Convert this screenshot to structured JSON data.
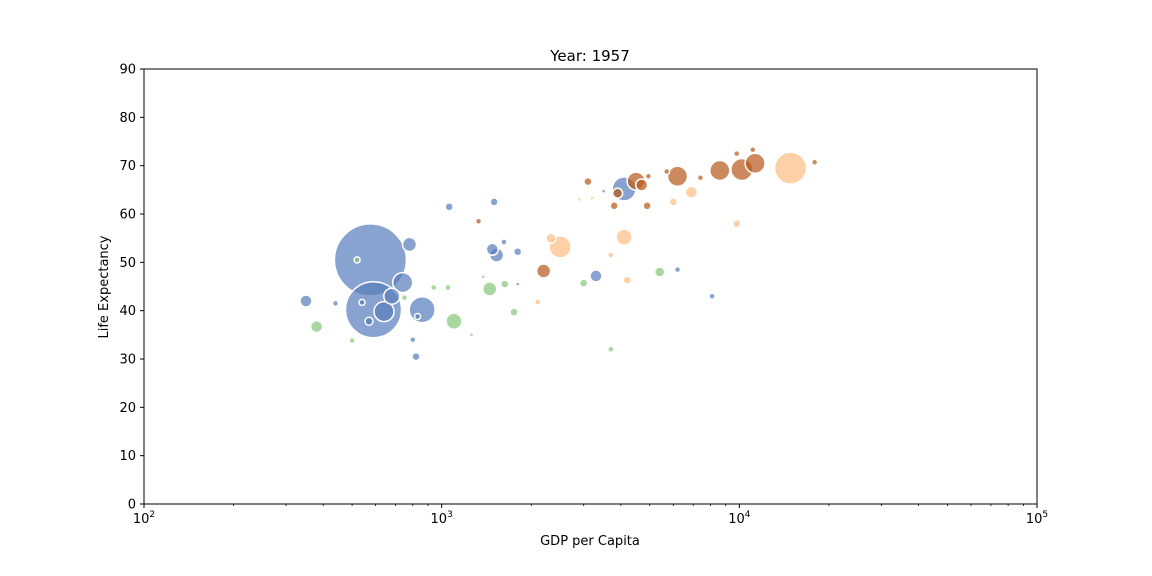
{
  "chart_data": {
    "type": "scatter",
    "title": "Year: 1957",
    "xlabel": "GDP per Capita",
    "ylabel": "Life Expectancy",
    "xscale": "log",
    "xlim": [
      100,
      100000
    ],
    "ylim": [
      0,
      90
    ],
    "x_ticks": [
      100,
      1000,
      10000,
      100000
    ],
    "x_tick_labels": [
      {
        "base": "10",
        "exp": "2"
      },
      {
        "base": "10",
        "exp": "3"
      },
      {
        "base": "10",
        "exp": "4"
      },
      {
        "base": "10",
        "exp": "5"
      }
    ],
    "y_ticks": [
      0,
      10,
      20,
      30,
      40,
      50,
      60,
      70,
      80,
      90
    ],
    "y_tick_labels": [
      "0",
      "10",
      "20",
      "30",
      "40",
      "50",
      "60",
      "70",
      "80",
      "90"
    ],
    "grid": false,
    "legend": "none",
    "colors": {
      "blue": "#5a7fbd",
      "green": "#86c77a",
      "orange": "#fdbe85",
      "brown": "#b85c1e"
    },
    "points": [
      {
        "x": 576,
        "y": 50.5,
        "size": 36,
        "color": "blue"
      },
      {
        "x": 590,
        "y": 40.2,
        "size": 28,
        "color": "blue"
      },
      {
        "x": 14850,
        "y": 69.5,
        "size": 16,
        "color": "orange"
      },
      {
        "x": 4100,
        "y": 65.2,
        "size": 12,
        "color": "blue"
      },
      {
        "x": 10200,
        "y": 69.2,
        "size": 11,
        "color": "brown"
      },
      {
        "x": 860,
        "y": 40.2,
        "size": 13,
        "color": "blue"
      },
      {
        "x": 2500,
        "y": 53.2,
        "size": 11,
        "color": "orange"
      },
      {
        "x": 8600,
        "y": 69.0,
        "size": 10,
        "color": "brown"
      },
      {
        "x": 11300,
        "y": 70.5,
        "size": 10,
        "color": "brown"
      },
      {
        "x": 6200,
        "y": 67.8,
        "size": 10,
        "color": "brown"
      },
      {
        "x": 740,
        "y": 45.8,
        "size": 10,
        "color": "blue"
      },
      {
        "x": 640,
        "y": 39.8,
        "size": 10,
        "color": "blue"
      },
      {
        "x": 4500,
        "y": 66.8,
        "size": 9,
        "color": "brown"
      },
      {
        "x": 680,
        "y": 43.0,
        "size": 8,
        "color": "blue"
      },
      {
        "x": 1100,
        "y": 37.8,
        "size": 8,
        "color": "green"
      },
      {
        "x": 4100,
        "y": 55.2,
        "size": 8,
        "color": "orange"
      },
      {
        "x": 2200,
        "y": 48.2,
        "size": 7,
        "color": "brown"
      },
      {
        "x": 780,
        "y": 53.7,
        "size": 7,
        "color": "blue"
      },
      {
        "x": 1530,
        "y": 51.5,
        "size": 7,
        "color": "blue"
      },
      {
        "x": 1480,
        "y": 52.7,
        "size": 6,
        "color": "blue"
      },
      {
        "x": 1450,
        "y": 44.5,
        "size": 7,
        "color": "green"
      },
      {
        "x": 3300,
        "y": 47.2,
        "size": 6,
        "color": "blue"
      },
      {
        "x": 6900,
        "y": 64.5,
        "size": 6,
        "color": "orange"
      },
      {
        "x": 380,
        "y": 36.7,
        "size": 6,
        "color": "green"
      },
      {
        "x": 350,
        "y": 42.0,
        "size": 6,
        "color": "blue"
      },
      {
        "x": 4700,
        "y": 66.0,
        "size": 6,
        "color": "brown"
      },
      {
        "x": 3900,
        "y": 64.3,
        "size": 5,
        "color": "brown"
      },
      {
        "x": 5400,
        "y": 48.0,
        "size": 5,
        "color": "green"
      },
      {
        "x": 2330,
        "y": 55.0,
        "size": 5,
        "color": "orange"
      },
      {
        "x": 1630,
        "y": 45.5,
        "size": 4,
        "color": "green"
      },
      {
        "x": 1750,
        "y": 39.7,
        "size": 4,
        "color": "green"
      },
      {
        "x": 3000,
        "y": 45.7,
        "size": 4,
        "color": "green"
      },
      {
        "x": 1060,
        "y": 61.5,
        "size": 4,
        "color": "blue"
      },
      {
        "x": 1500,
        "y": 62.5,
        "size": 4,
        "color": "blue"
      },
      {
        "x": 3100,
        "y": 66.7,
        "size": 4,
        "color": "brown"
      },
      {
        "x": 3800,
        "y": 61.7,
        "size": 4,
        "color": "brown"
      },
      {
        "x": 4900,
        "y": 61.7,
        "size": 4,
        "color": "brown"
      },
      {
        "x": 4200,
        "y": 46.3,
        "size": 4,
        "color": "orange"
      },
      {
        "x": 9800,
        "y": 58.0,
        "size": 4,
        "color": "orange"
      },
      {
        "x": 6000,
        "y": 62.5,
        "size": 4,
        "color": "orange"
      },
      {
        "x": 820,
        "y": 30.5,
        "size": 4,
        "color": "blue"
      },
      {
        "x": 1800,
        "y": 52.2,
        "size": 4,
        "color": "blue"
      },
      {
        "x": 6200,
        "y": 48.5,
        "size": 3,
        "color": "blue"
      },
      {
        "x": 8100,
        "y": 43.0,
        "size": 3,
        "color": "blue"
      },
      {
        "x": 520,
        "y": 50.5,
        "size": 3,
        "color": "green"
      },
      {
        "x": 570,
        "y": 37.8,
        "size": 4,
        "color": "blue"
      },
      {
        "x": 830,
        "y": 38.8,
        "size": 3,
        "color": "blue"
      },
      {
        "x": 940,
        "y": 44.8,
        "size": 3,
        "color": "green"
      },
      {
        "x": 1050,
        "y": 44.8,
        "size": 3,
        "color": "green"
      },
      {
        "x": 540,
        "y": 41.7,
        "size": 3,
        "color": "blue"
      },
      {
        "x": 440,
        "y": 41.5,
        "size": 3,
        "color": "blue"
      },
      {
        "x": 500,
        "y": 33.8,
        "size": 3,
        "color": "green"
      },
      {
        "x": 800,
        "y": 34.0,
        "size": 3,
        "color": "blue"
      },
      {
        "x": 3700,
        "y": 32.0,
        "size": 3,
        "color": "green"
      },
      {
        "x": 1620,
        "y": 54.2,
        "size": 3,
        "color": "blue"
      },
      {
        "x": 17900,
        "y": 70.7,
        "size": 3,
        "color": "brown"
      },
      {
        "x": 9800,
        "y": 72.5,
        "size": 3,
        "color": "brown"
      },
      {
        "x": 11100,
        "y": 73.3,
        "size": 3,
        "color": "brown"
      },
      {
        "x": 5700,
        "y": 68.8,
        "size": 3,
        "color": "brown"
      },
      {
        "x": 7400,
        "y": 67.5,
        "size": 3,
        "color": "brown"
      },
      {
        "x": 4950,
        "y": 67.8,
        "size": 3,
        "color": "brown"
      },
      {
        "x": 3700,
        "y": 51.5,
        "size": 3,
        "color": "orange"
      },
      {
        "x": 2100,
        "y": 41.8,
        "size": 3,
        "color": "orange"
      },
      {
        "x": 1330,
        "y": 58.5,
        "size": 3,
        "color": "brown"
      },
      {
        "x": 750,
        "y": 42.7,
        "size": 3,
        "color": "green"
      },
      {
        "x": 1260,
        "y": 35.0,
        "size": 2,
        "color": "green"
      },
      {
        "x": 1380,
        "y": 47.0,
        "size": 2,
        "color": "green"
      },
      {
        "x": 1800,
        "y": 45.5,
        "size": 2,
        "color": "blue"
      },
      {
        "x": 3500,
        "y": 64.7,
        "size": 2,
        "color": "blue"
      },
      {
        "x": 3200,
        "y": 63.3,
        "size": 2,
        "color": "orange"
      },
      {
        "x": 2900,
        "y": 63.0,
        "size": 2,
        "color": "orange"
      }
    ]
  }
}
